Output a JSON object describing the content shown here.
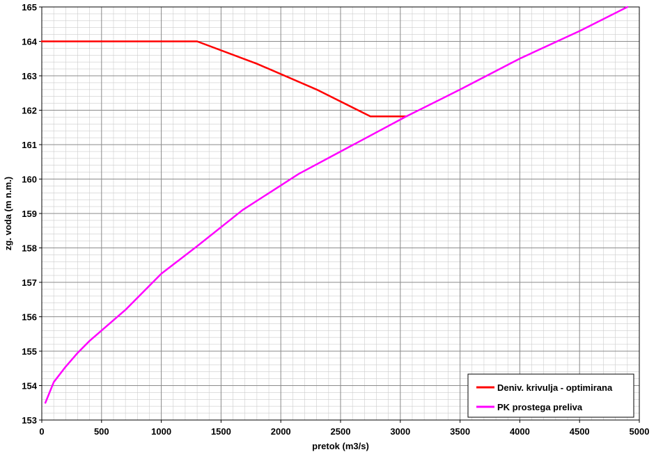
{
  "chart_data": {
    "type": "line",
    "xlabel": "pretok (m3/s)",
    "ylabel": "zg. voda (m n.m.)",
    "xlim": [
      0,
      5000
    ],
    "ylim": [
      153,
      165
    ],
    "x_ticks": [
      0,
      500,
      1000,
      1500,
      2000,
      2500,
      3000,
      3500,
      4000,
      4500,
      5000
    ],
    "y_ticks": [
      153,
      154,
      155,
      156,
      157,
      158,
      159,
      160,
      161,
      162,
      163,
      164,
      165
    ],
    "x_minor_step": 100,
    "y_minor_step": 0.2,
    "grid": true,
    "legend_position": "bottom-right",
    "series": [
      {
        "name": "Deniv. krivulja - optimirana",
        "color": "#ff0000",
        "points": [
          [
            0,
            164.0
          ],
          [
            1300,
            164.0
          ],
          [
            1800,
            163.35
          ],
          [
            2300,
            162.6
          ],
          [
            2750,
            161.82
          ],
          [
            3050,
            161.82
          ]
        ]
      },
      {
        "name": "PK prostega preliva",
        "color": "#ff00ff",
        "points": [
          [
            30,
            153.5
          ],
          [
            100,
            154.1
          ],
          [
            200,
            154.55
          ],
          [
            300,
            154.95
          ],
          [
            400,
            155.3
          ],
          [
            500,
            155.6
          ],
          [
            700,
            156.2
          ],
          [
            1000,
            157.25
          ],
          [
            1300,
            158.05
          ],
          [
            1680,
            159.1
          ],
          [
            2150,
            160.15
          ],
          [
            2500,
            160.8
          ],
          [
            3050,
            161.82
          ],
          [
            3500,
            162.6
          ],
          [
            4000,
            163.5
          ],
          [
            4500,
            164.3
          ],
          [
            4900,
            165.0
          ]
        ]
      }
    ]
  }
}
